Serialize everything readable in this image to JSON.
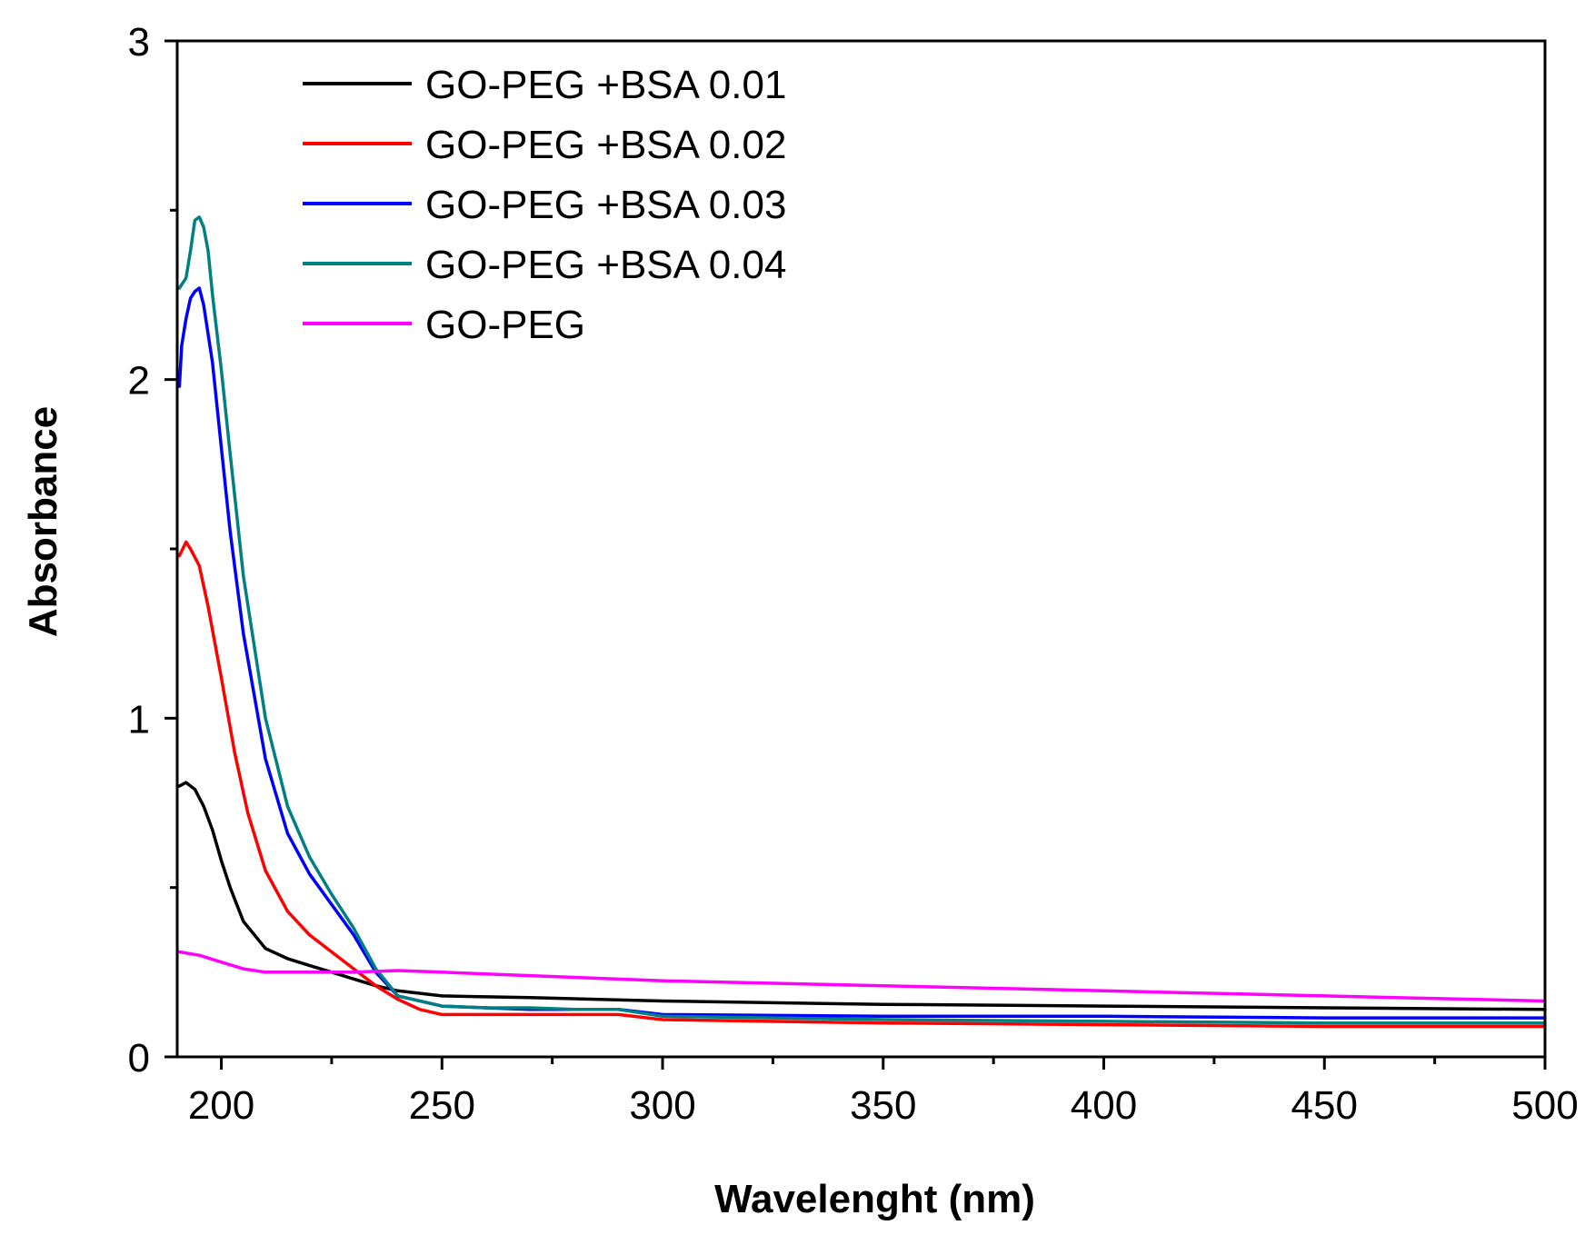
{
  "chart_data": {
    "type": "line",
    "title": "",
    "xlabel": "Wavelenght (nm)",
    "ylabel": "Absorbance",
    "xlim": [
      190,
      500
    ],
    "ylim": [
      0,
      3
    ],
    "x_major_ticks": [
      200,
      250,
      300,
      350,
      400,
      450,
      500
    ],
    "x_tick_labels": [
      "200",
      "250",
      "300",
      "350",
      "400",
      "450",
      "500"
    ],
    "x_minor_ticks": [
      225,
      275,
      325,
      375,
      425,
      475
    ],
    "y_major_ticks": [
      0,
      1,
      2,
      3
    ],
    "y_tick_labels": [
      "0",
      "1",
      "2",
      "3"
    ],
    "y_minor_ticks": [
      0.5,
      1.5,
      2.5
    ],
    "grid": false,
    "legend_position": "top-left",
    "series": [
      {
        "name": "GO-PEG +BSA 0.01",
        "color": "#000000",
        "x": [
          190.5,
          192,
          194,
          196,
          198,
          200,
          202,
          205,
          210,
          215,
          220,
          225,
          230,
          235,
          240,
          250,
          270,
          300,
          350,
          400,
          450,
          500
        ],
        "y": [
          0.8,
          0.81,
          0.79,
          0.74,
          0.67,
          0.58,
          0.5,
          0.4,
          0.32,
          0.29,
          0.27,
          0.25,
          0.23,
          0.21,
          0.195,
          0.18,
          0.175,
          0.165,
          0.155,
          0.15,
          0.145,
          0.14
        ]
      },
      {
        "name": "GO-PEG +BSA 0.02",
        "color": "#ff0000",
        "x": [
          190.5,
          192,
          193,
          195,
          197,
          200,
          203,
          206,
          210,
          215,
          220,
          225,
          230,
          235,
          240,
          245,
          250,
          270,
          290,
          300,
          350,
          400,
          450,
          500
        ],
        "y": [
          1.48,
          1.52,
          1.5,
          1.45,
          1.33,
          1.12,
          0.9,
          0.72,
          0.55,
          0.43,
          0.36,
          0.31,
          0.26,
          0.21,
          0.17,
          0.14,
          0.125,
          0.125,
          0.125,
          0.11,
          0.1,
          0.095,
          0.09,
          0.09
        ]
      },
      {
        "name": "GO-PEG +BSA 0.03",
        "color": "#0000ff",
        "x": [
          190.5,
          191,
          192,
          193,
          194,
          195,
          196,
          198,
          200,
          202,
          205,
          210,
          215,
          220,
          225,
          230,
          235,
          240,
          250,
          260,
          270,
          280,
          290,
          300,
          350,
          400,
          450,
          500
        ],
        "y": [
          1.98,
          2.1,
          2.18,
          2.24,
          2.26,
          2.27,
          2.22,
          2.05,
          1.8,
          1.55,
          1.25,
          0.88,
          0.66,
          0.54,
          0.45,
          0.36,
          0.25,
          0.18,
          0.15,
          0.145,
          0.14,
          0.14,
          0.14,
          0.125,
          0.12,
          0.12,
          0.115,
          0.115
        ]
      },
      {
        "name": "GO-PEG +BSA 0.04",
        "color": "#008080",
        "x": [
          190.5,
          192,
          193,
          194,
          195,
          196,
          197,
          198,
          200,
          202,
          205,
          210,
          215,
          220,
          225,
          230,
          235,
          240,
          250,
          260,
          270,
          280,
          290,
          300,
          350,
          400,
          450,
          500
        ],
        "y": [
          2.27,
          2.3,
          2.38,
          2.47,
          2.48,
          2.45,
          2.38,
          2.25,
          2.03,
          1.78,
          1.42,
          1.0,
          0.74,
          0.59,
          0.48,
          0.38,
          0.26,
          0.18,
          0.15,
          0.145,
          0.145,
          0.14,
          0.14,
          0.12,
          0.11,
          0.105,
          0.1,
          0.1
        ]
      },
      {
        "name": "GO-PEG",
        "color": "#ff00ff",
        "x": [
          190.5,
          195,
          200,
          205,
          210,
          215,
          220,
          230,
          240,
          250,
          260,
          270,
          300,
          350,
          400,
          450,
          500
        ],
        "y": [
          0.31,
          0.3,
          0.28,
          0.26,
          0.25,
          0.25,
          0.25,
          0.25,
          0.255,
          0.25,
          0.245,
          0.24,
          0.225,
          0.21,
          0.195,
          0.18,
          0.165
        ]
      }
    ]
  }
}
